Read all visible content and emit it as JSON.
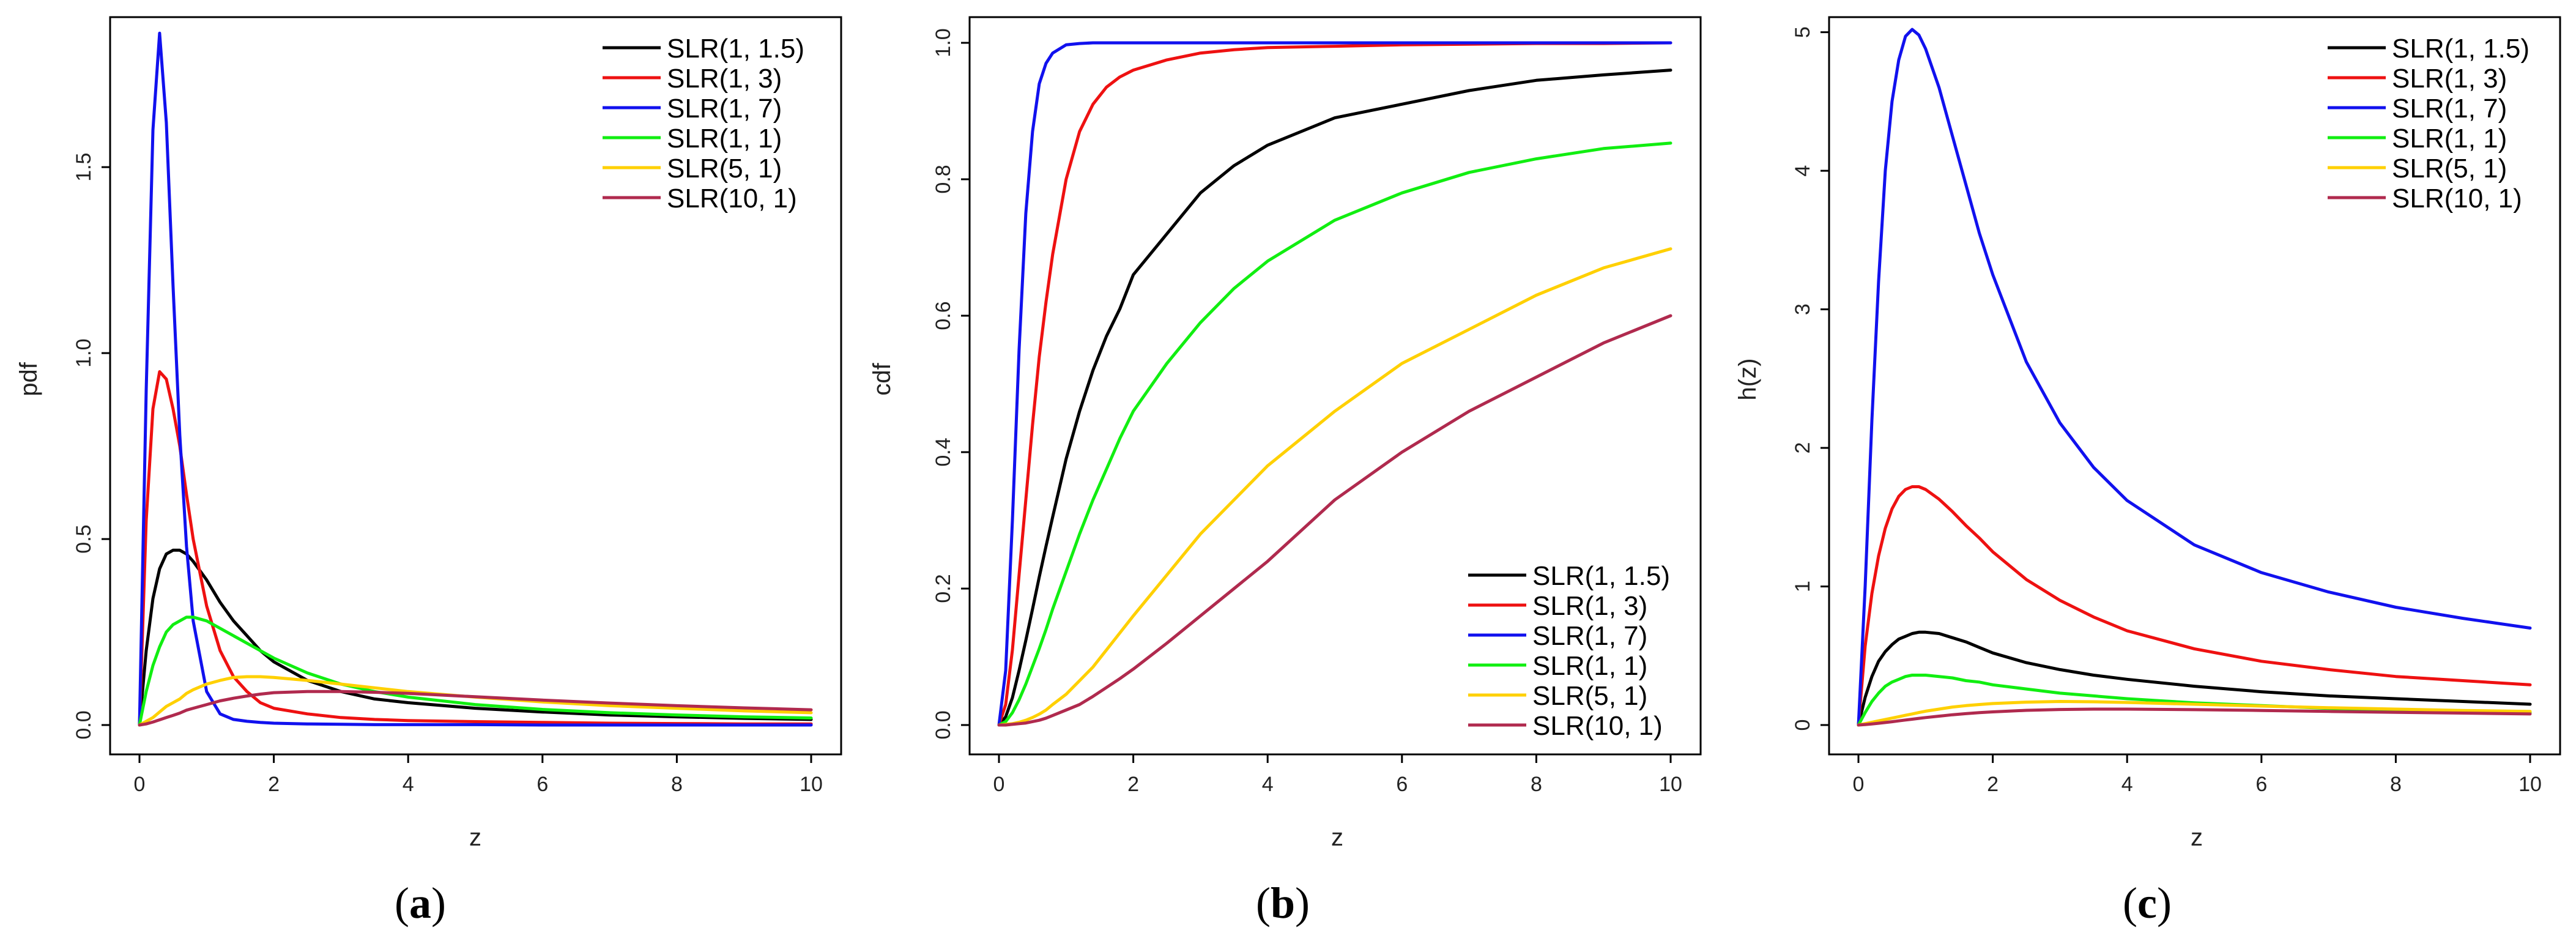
{
  "figure": {
    "legend_labels": [
      "SLR(1, 1.5)",
      "SLR(1, 3)",
      "SLR(1, 7)",
      "SLR(1, 1)",
      "SLR(5, 1)",
      "SLR(10, 1)"
    ],
    "series_colors": [
      "#000000",
      "#ee1111",
      "#1111ee",
      "#11ee11",
      "#ffd000",
      "#b02a4e"
    ]
  },
  "chart_data": [
    {
      "type": "line",
      "panel": "a",
      "caption": {
        "open": "(",
        "letter": "a",
        "close": ")"
      },
      "xlabel": "z",
      "ylabel": "pdf",
      "xlim": [
        0,
        10
      ],
      "ylim": [
        0,
        1.9
      ],
      "xticks": [
        "0",
        "2",
        "4",
        "6",
        "8",
        "10"
      ],
      "yticks": [
        "0.0",
        "0.5",
        "1.0",
        "1.5"
      ],
      "ytick_values": [
        0,
        0.5,
        1.0,
        1.5
      ],
      "legend_position": "top-right",
      "x": [
        0,
        0.1,
        0.2,
        0.3,
        0.4,
        0.5,
        0.6,
        0.7,
        0.8,
        1.0,
        1.2,
        1.4,
        1.6,
        1.8,
        2.0,
        2.5,
        3.0,
        3.5,
        4.0,
        5.0,
        6.0,
        7.0,
        8.0,
        9.0,
        10.0
      ],
      "series": [
        {
          "name": "SLR(1, 1.5)",
          "values": [
            0,
            0.2,
            0.34,
            0.42,
            0.46,
            0.47,
            0.47,
            0.46,
            0.44,
            0.39,
            0.33,
            0.28,
            0.24,
            0.2,
            0.17,
            0.12,
            0.09,
            0.07,
            0.06,
            0.045,
            0.035,
            0.027,
            0.022,
            0.018,
            0.015
          ]
        },
        {
          "name": "SLR(1, 3)",
          "values": [
            0,
            0.55,
            0.85,
            0.95,
            0.93,
            0.85,
            0.75,
            0.62,
            0.5,
            0.32,
            0.2,
            0.13,
            0.09,
            0.06,
            0.045,
            0.03,
            0.02,
            0.015,
            0.012,
            0.009,
            0.007,
            0.005,
            0.004,
            0.003,
            0.003
          ]
        },
        {
          "name": "SLR(1, 7)",
          "values": [
            0,
            0.9,
            1.6,
            1.86,
            1.62,
            1.18,
            0.78,
            0.48,
            0.28,
            0.09,
            0.03,
            0.015,
            0.01,
            0.007,
            0.005,
            0.003,
            0.002,
            0.001,
            0.001,
            0.001,
            0.0,
            0.0,
            0.0,
            0.0,
            0.0
          ]
        },
        {
          "name": "SLR(1, 1)",
          "values": [
            0,
            0.09,
            0.16,
            0.21,
            0.25,
            0.27,
            0.28,
            0.29,
            0.29,
            0.28,
            0.26,
            0.24,
            0.22,
            0.2,
            0.18,
            0.14,
            0.11,
            0.09,
            0.075,
            0.055,
            0.042,
            0.033,
            0.027,
            0.022,
            0.019
          ]
        },
        {
          "name": "SLR(5, 1)",
          "values": [
            0,
            0.01,
            0.02,
            0.035,
            0.05,
            0.06,
            0.07,
            0.085,
            0.095,
            0.11,
            0.12,
            0.128,
            0.13,
            0.13,
            0.128,
            0.12,
            0.11,
            0.1,
            0.09,
            0.075,
            0.062,
            0.052,
            0.045,
            0.038,
            0.033
          ]
        },
        {
          "name": "SLR(10, 1)",
          "values": [
            0,
            0.003,
            0.008,
            0.014,
            0.02,
            0.026,
            0.032,
            0.04,
            0.045,
            0.055,
            0.065,
            0.072,
            0.078,
            0.083,
            0.087,
            0.09,
            0.09,
            0.088,
            0.085,
            0.076,
            0.067,
            0.059,
            0.052,
            0.046,
            0.041
          ]
        }
      ]
    },
    {
      "type": "line",
      "panel": "b",
      "caption": {
        "open": "(",
        "letter": "b",
        "close": ")"
      },
      "xlabel": "z",
      "ylabel": "cdf",
      "xlim": [
        0,
        10
      ],
      "ylim": [
        0,
        1.0
      ],
      "xticks": [
        "0",
        "2",
        "4",
        "6",
        "8",
        "10"
      ],
      "yticks": [
        "0.0",
        "0.2",
        "0.4",
        "0.6",
        "0.8",
        "1.0"
      ],
      "ytick_values": [
        0,
        0.2,
        0.4,
        0.6,
        0.8,
        1.0
      ],
      "legend_position": "bottom-right",
      "x": [
        0,
        0.1,
        0.2,
        0.3,
        0.4,
        0.5,
        0.6,
        0.7,
        0.8,
        1.0,
        1.2,
        1.4,
        1.6,
        1.8,
        2.0,
        2.5,
        3.0,
        3.5,
        4.0,
        5.0,
        6.0,
        7.0,
        8.0,
        9.0,
        10.0
      ],
      "series": [
        {
          "name": "SLR(1, 1.5)",
          "values": [
            0,
            0.012,
            0.04,
            0.08,
            0.124,
            0.17,
            0.217,
            0.262,
            0.305,
            0.39,
            0.46,
            0.52,
            0.57,
            0.61,
            0.66,
            0.72,
            0.78,
            0.82,
            0.85,
            0.89,
            0.91,
            0.93,
            0.945,
            0.953,
            0.96
          ]
        },
        {
          "name": "SLR(1, 3)",
          "values": [
            0,
            0.03,
            0.11,
            0.22,
            0.33,
            0.44,
            0.54,
            0.62,
            0.69,
            0.8,
            0.87,
            0.91,
            0.935,
            0.95,
            0.96,
            0.975,
            0.985,
            0.99,
            0.993,
            0.995,
            0.997,
            0.998,
            0.999,
            0.999,
            1.0
          ]
        },
        {
          "name": "SLR(1, 7)",
          "values": [
            0,
            0.08,
            0.3,
            0.55,
            0.75,
            0.87,
            0.94,
            0.97,
            0.985,
            0.997,
            0.999,
            1.0,
            1.0,
            1.0,
            1.0,
            1.0,
            1.0,
            1.0,
            1.0,
            1.0,
            1.0,
            1.0,
            1.0,
            1.0,
            1.0
          ]
        },
        {
          "name": "SLR(1, 1)",
          "values": [
            0,
            0.005,
            0.018,
            0.037,
            0.06,
            0.086,
            0.112,
            0.14,
            0.17,
            0.225,
            0.28,
            0.33,
            0.375,
            0.42,
            0.46,
            0.53,
            0.59,
            0.64,
            0.68,
            0.74,
            0.78,
            0.81,
            0.83,
            0.845,
            0.853
          ]
        },
        {
          "name": "SLR(5, 1)",
          "values": [
            0,
            0.001,
            0.002,
            0.004,
            0.007,
            0.011,
            0.016,
            0.022,
            0.03,
            0.045,
            0.065,
            0.085,
            0.11,
            0.135,
            0.16,
            0.22,
            0.28,
            0.33,
            0.38,
            0.46,
            0.53,
            0.58,
            0.63,
            0.67,
            0.698
          ]
        },
        {
          "name": "SLR(10, 1)",
          "values": [
            0,
            0.0,
            0.001,
            0.002,
            0.003,
            0.005,
            0.007,
            0.01,
            0.014,
            0.022,
            0.03,
            0.042,
            0.055,
            0.068,
            0.082,
            0.12,
            0.16,
            0.2,
            0.24,
            0.33,
            0.4,
            0.46,
            0.51,
            0.56,
            0.6
          ]
        }
      ]
    },
    {
      "type": "line",
      "panel": "c",
      "caption": {
        "open": "(",
        "letter": "c",
        "close": ")"
      },
      "xlabel": "z",
      "ylabel": "h(z)",
      "xlim": [
        0,
        10
      ],
      "ylim": [
        0,
        5.1
      ],
      "xticks": [
        "0",
        "2",
        "4",
        "6",
        "8",
        "10"
      ],
      "yticks": [
        "0",
        "1",
        "2",
        "3",
        "4",
        "5"
      ],
      "ytick_values": [
        0,
        1,
        2,
        3,
        4,
        5
      ],
      "legend_position": "top-right",
      "x": [
        0,
        0.1,
        0.2,
        0.3,
        0.4,
        0.5,
        0.6,
        0.7,
        0.8,
        0.9,
        1.0,
        1.2,
        1.4,
        1.6,
        1.8,
        2.0,
        2.5,
        3.0,
        3.5,
        4.0,
        5.0,
        6.0,
        7.0,
        8.0,
        9.0,
        10.0
      ],
      "series": [
        {
          "name": "SLR(1, 1.5)",
          "values": [
            0,
            0.2,
            0.35,
            0.46,
            0.53,
            0.58,
            0.62,
            0.64,
            0.66,
            0.67,
            0.67,
            0.66,
            0.63,
            0.6,
            0.56,
            0.52,
            0.45,
            0.4,
            0.36,
            0.33,
            0.28,
            0.24,
            0.21,
            0.19,
            0.17,
            0.15
          ]
        },
        {
          "name": "SLR(1, 3)",
          "values": [
            0,
            0.57,
            0.95,
            1.22,
            1.42,
            1.56,
            1.65,
            1.7,
            1.72,
            1.72,
            1.7,
            1.63,
            1.54,
            1.44,
            1.35,
            1.25,
            1.05,
            0.9,
            0.78,
            0.68,
            0.55,
            0.46,
            0.4,
            0.35,
            0.32,
            0.29
          ]
        },
        {
          "name": "SLR(1, 7)",
          "values": [
            0,
            1.0,
            2.2,
            3.2,
            4.0,
            4.5,
            4.8,
            4.97,
            5.02,
            4.98,
            4.88,
            4.6,
            4.25,
            3.9,
            3.55,
            3.25,
            2.62,
            2.18,
            1.86,
            1.62,
            1.3,
            1.1,
            0.96,
            0.85,
            0.77,
            0.7
          ]
        },
        {
          "name": "SLR(1, 1)",
          "values": [
            0,
            0.09,
            0.17,
            0.23,
            0.28,
            0.31,
            0.33,
            0.35,
            0.36,
            0.36,
            0.36,
            0.35,
            0.34,
            0.32,
            0.31,
            0.29,
            0.26,
            0.23,
            0.21,
            0.19,
            0.16,
            0.14,
            0.12,
            0.11,
            0.1,
            0.09
          ]
        },
        {
          "name": "SLR(5, 1)",
          "values": [
            0,
            0.01,
            0.02,
            0.03,
            0.04,
            0.05,
            0.06,
            0.07,
            0.08,
            0.09,
            0.1,
            0.115,
            0.13,
            0.14,
            0.148,
            0.155,
            0.165,
            0.17,
            0.168,
            0.163,
            0.15,
            0.137,
            0.125,
            0.115,
            0.105,
            0.098
          ]
        },
        {
          "name": "SLR(10, 1)",
          "values": [
            0,
            0.003,
            0.008,
            0.013,
            0.018,
            0.024,
            0.03,
            0.036,
            0.042,
            0.048,
            0.054,
            0.064,
            0.074,
            0.082,
            0.089,
            0.095,
            0.106,
            0.112,
            0.115,
            0.115,
            0.111,
            0.105,
            0.098,
            0.092,
            0.086,
            0.08
          ]
        }
      ]
    }
  ]
}
